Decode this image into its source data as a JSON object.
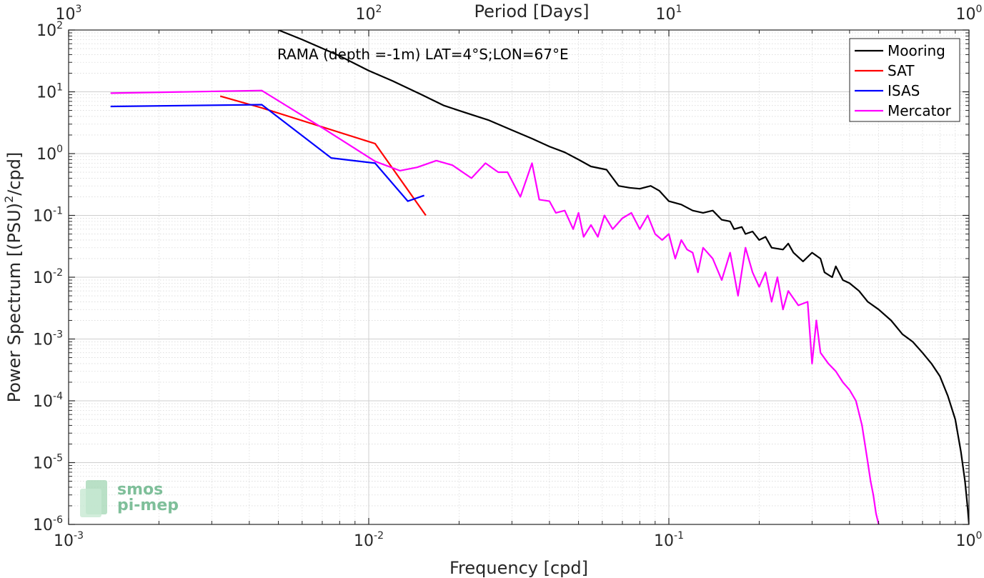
{
  "chart_data": {
    "type": "line",
    "title": "",
    "annotation": "RAMA (depth =-1m) LAT=4°S;LON=67°E",
    "xlabel": "Frequency [cpd]",
    "ylabel": "Power Spectrum [(PSU)^2/cpd]",
    "ylabel_parts": {
      "main": "Power Spectrum [(PSU)",
      "sup": "2",
      "tail": "/cpd]"
    },
    "top_xlabel": "Period [Days]",
    "xscale": "log",
    "yscale": "log",
    "xlim": [
      0.001,
      1
    ],
    "ylim": [
      1e-06,
      100
    ],
    "grid": true,
    "legend_position": "top-right",
    "x_ticks": [
      {
        "value": 0.001,
        "base": "10",
        "exp": "-3"
      },
      {
        "value": 0.01,
        "base": "10",
        "exp": "-2"
      },
      {
        "value": 0.1,
        "base": "10",
        "exp": "-1"
      },
      {
        "value": 1,
        "base": "10",
        "exp": "0"
      }
    ],
    "y_ticks": [
      {
        "value": 1e-06,
        "base": "10",
        "exp": "-6"
      },
      {
        "value": 1e-05,
        "base": "10",
        "exp": "-5"
      },
      {
        "value": 0.0001,
        "base": "10",
        "exp": "-4"
      },
      {
        "value": 0.001,
        "base": "10",
        "exp": "-3"
      },
      {
        "value": 0.01,
        "base": "10",
        "exp": "-2"
      },
      {
        "value": 0.1,
        "base": "10",
        "exp": "-1"
      },
      {
        "value": 1,
        "base": "10",
        "exp": "0"
      },
      {
        "value": 10,
        "base": "10",
        "exp": "1"
      },
      {
        "value": 100,
        "base": "10",
        "exp": "2"
      }
    ],
    "top_ticks": [
      {
        "value": 0.001,
        "base": "10",
        "exp": "3"
      },
      {
        "value": 0.01,
        "base": "10",
        "exp": "2"
      },
      {
        "value": 0.1,
        "base": "10",
        "exp": "1"
      },
      {
        "value": 1,
        "base": "10",
        "exp": "0"
      }
    ],
    "series": [
      {
        "name": "Mooring",
        "color": "#000000",
        "x": [
          0.005,
          0.006,
          0.008,
          0.01,
          0.012,
          0.015,
          0.0178,
          0.021,
          0.025,
          0.03,
          0.035,
          0.04,
          0.045,
          0.05,
          0.055,
          0.062,
          0.068,
          0.074,
          0.08,
          0.087,
          0.093,
          0.1,
          0.11,
          0.12,
          0.13,
          0.14,
          0.15,
          0.16,
          0.165,
          0.175,
          0.18,
          0.19,
          0.2,
          0.21,
          0.22,
          0.24,
          0.25,
          0.26,
          0.28,
          0.3,
          0.32,
          0.33,
          0.35,
          0.36,
          0.38,
          0.4,
          0.43,
          0.46,
          0.5,
          0.55,
          0.6,
          0.65,
          0.7,
          0.75,
          0.8,
          0.85,
          0.9,
          0.94,
          0.97,
          0.99,
          1.0
        ],
        "y": [
          100,
          70,
          38,
          22,
          15,
          9,
          6,
          4.6,
          3.5,
          2.4,
          1.75,
          1.3,
          1.05,
          0.8,
          0.62,
          0.55,
          0.3,
          0.28,
          0.27,
          0.3,
          0.25,
          0.17,
          0.15,
          0.12,
          0.11,
          0.12,
          0.085,
          0.08,
          0.06,
          0.065,
          0.05,
          0.055,
          0.04,
          0.045,
          0.03,
          0.028,
          0.035,
          0.025,
          0.018,
          0.025,
          0.02,
          0.012,
          0.01,
          0.015,
          0.009,
          0.008,
          0.006,
          0.004,
          0.003,
          0.002,
          0.0012,
          0.0009,
          0.0006,
          0.0004,
          0.00025,
          0.00012,
          5e-05,
          1.5e-05,
          5e-06,
          1.8e-06,
          1e-06
        ]
      },
      {
        "name": "SAT",
        "color": "#ff0000",
        "x": [
          0.0032,
          0.0044,
          0.0105,
          0.0155
        ],
        "y": [
          8.5,
          5.5,
          1.45,
          0.1
        ]
      },
      {
        "name": "ISAS",
        "color": "#0000ff",
        "x": [
          0.00138,
          0.0044,
          0.0075,
          0.0105,
          0.0135,
          0.0153
        ],
        "y": [
          5.8,
          6.2,
          0.85,
          0.7,
          0.17,
          0.21
        ]
      },
      {
        "name": "Mercator",
        "color": "#ff00ff",
        "x": [
          0.00138,
          0.0044,
          0.0072,
          0.0105,
          0.0127,
          0.0145,
          0.0168,
          0.019,
          0.022,
          0.0245,
          0.027,
          0.029,
          0.032,
          0.035,
          0.037,
          0.04,
          0.042,
          0.045,
          0.048,
          0.05,
          0.052,
          0.055,
          0.058,
          0.061,
          0.065,
          0.07,
          0.075,
          0.08,
          0.085,
          0.09,
          0.095,
          0.1,
          0.105,
          0.11,
          0.115,
          0.12,
          0.125,
          0.13,
          0.14,
          0.15,
          0.16,
          0.17,
          0.18,
          0.19,
          0.2,
          0.21,
          0.22,
          0.23,
          0.24,
          0.25,
          0.27,
          0.29,
          0.3,
          0.31,
          0.32,
          0.34,
          0.36,
          0.38,
          0.4,
          0.42,
          0.44,
          0.46,
          0.47,
          0.48,
          0.49,
          0.5
        ],
        "y": [
          9.5,
          10.5,
          2.4,
          0.75,
          0.53,
          0.6,
          0.77,
          0.65,
          0.4,
          0.7,
          0.5,
          0.5,
          0.2,
          0.7,
          0.18,
          0.17,
          0.11,
          0.12,
          0.06,
          0.11,
          0.045,
          0.07,
          0.045,
          0.1,
          0.06,
          0.09,
          0.11,
          0.06,
          0.1,
          0.05,
          0.04,
          0.05,
          0.02,
          0.04,
          0.028,
          0.025,
          0.012,
          0.03,
          0.02,
          0.009,
          0.025,
          0.005,
          0.03,
          0.012,
          0.007,
          0.012,
          0.004,
          0.01,
          0.003,
          0.006,
          0.0035,
          0.004,
          0.0004,
          0.002,
          0.0006,
          0.0004,
          0.0003,
          0.0002,
          0.00015,
          0.0001,
          4e-05,
          1e-05,
          5e-06,
          3e-06,
          1.5e-06,
          1e-06
        ]
      }
    ]
  },
  "legend": {
    "entries": [
      "Mooring",
      "SAT",
      "ISAS",
      "Mercator"
    ]
  },
  "logo": {
    "line1": "smos",
    "line2": "pi-mep"
  }
}
